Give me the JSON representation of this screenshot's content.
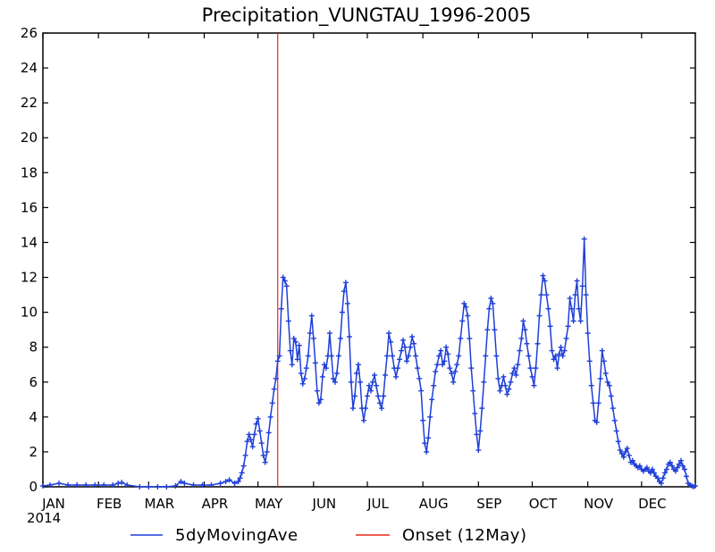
{
  "chart_data": {
    "type": "line",
    "title": "Precipitation_VUNGTAU_1996-2005",
    "xlabel": "",
    "ylabel": "",
    "ylim": [
      0,
      26
    ],
    "xlim_day": [
      1,
      365
    ],
    "year_label": "2014",
    "grid": false,
    "legend_position": "bottom",
    "y_ticks": [
      0,
      2,
      4,
      6,
      8,
      10,
      12,
      14,
      16,
      18,
      20,
      22,
      24,
      26
    ],
    "months": [
      {
        "label": "JAN",
        "day": 1
      },
      {
        "label": "FEB",
        "day": 32
      },
      {
        "label": "MAR",
        "day": 60
      },
      {
        "label": "APR",
        "day": 91
      },
      {
        "label": "MAY",
        "day": 121
      },
      {
        "label": "JUN",
        "day": 152
      },
      {
        "label": "JUL",
        "day": 182
      },
      {
        "label": "AUG",
        "day": 213
      },
      {
        "label": "SEP",
        "day": 244
      },
      {
        "label": "OCT",
        "day": 274
      },
      {
        "label": "NOV",
        "day": 305
      },
      {
        "label": "DEC",
        "day": 335
      }
    ],
    "onset": {
      "label": "Onset (12May)",
      "day": 132,
      "color": "#e8281e"
    },
    "series": [
      {
        "name": "5dyMovingAve",
        "color": "#1f3fd8",
        "points": [
          [
            1,
            0.05
          ],
          [
            5,
            0.1
          ],
          [
            10,
            0.2
          ],
          [
            15,
            0.1
          ],
          [
            20,
            0.1
          ],
          [
            25,
            0.1
          ],
          [
            30,
            0.1
          ],
          [
            35,
            0.1
          ],
          [
            40,
            0.1
          ],
          [
            43,
            0.2
          ],
          [
            45,
            0.25
          ],
          [
            48,
            0.1
          ],
          [
            55,
            0.0
          ],
          [
            60,
            0.0
          ],
          [
            65,
            0.0
          ],
          [
            70,
            0.0
          ],
          [
            75,
            0.05
          ],
          [
            78,
            0.3
          ],
          [
            80,
            0.2
          ],
          [
            85,
            0.1
          ],
          [
            90,
            0.1
          ],
          [
            95,
            0.1
          ],
          [
            100,
            0.2
          ],
          [
            103,
            0.3
          ],
          [
            105,
            0.4
          ],
          [
            108,
            0.2
          ],
          [
            110,
            0.3
          ],
          [
            111,
            0.5
          ],
          [
            112,
            0.8
          ],
          [
            113,
            1.2
          ],
          [
            114,
            1.8
          ],
          [
            115,
            2.6
          ],
          [
            116,
            3.0
          ],
          [
            117,
            2.7
          ],
          [
            118,
            2.3
          ],
          [
            119,
            3.0
          ],
          [
            120,
            3.6
          ],
          [
            121,
            3.9
          ],
          [
            122,
            3.2
          ],
          [
            123,
            2.5
          ],
          [
            124,
            1.8
          ],
          [
            125,
            1.4
          ],
          [
            126,
            2.0
          ],
          [
            127,
            3.1
          ],
          [
            128,
            4.0
          ],
          [
            129,
            4.8
          ],
          [
            130,
            5.6
          ],
          [
            131,
            6.2
          ],
          [
            132,
            7.2
          ],
          [
            133,
            7.5
          ],
          [
            134,
            10.2
          ],
          [
            135,
            12.0
          ],
          [
            136,
            11.8
          ],
          [
            137,
            11.5
          ],
          [
            138,
            9.5
          ],
          [
            139,
            7.8
          ],
          [
            140,
            7.0
          ],
          [
            141,
            8.5
          ],
          [
            142,
            8.3
          ],
          [
            143,
            7.3
          ],
          [
            144,
            8.1
          ],
          [
            145,
            6.5
          ],
          [
            146,
            5.9
          ],
          [
            147,
            6.2
          ],
          [
            148,
            6.8
          ],
          [
            149,
            7.5
          ],
          [
            150,
            8.8
          ],
          [
            151,
            9.8
          ],
          [
            152,
            8.5
          ],
          [
            153,
            7.1
          ],
          [
            154,
            5.5
          ],
          [
            155,
            4.8
          ],
          [
            156,
            5.0
          ],
          [
            157,
            6.3
          ],
          [
            158,
            7.0
          ],
          [
            159,
            6.8
          ],
          [
            160,
            7.5
          ],
          [
            161,
            8.8
          ],
          [
            162,
            7.5
          ],
          [
            163,
            6.2
          ],
          [
            164,
            6.0
          ],
          [
            165,
            6.5
          ],
          [
            166,
            7.5
          ],
          [
            167,
            8.5
          ],
          [
            168,
            10.0
          ],
          [
            169,
            11.2
          ],
          [
            170,
            11.7
          ],
          [
            171,
            10.5
          ],
          [
            172,
            8.6
          ],
          [
            173,
            6.0
          ],
          [
            174,
            4.5
          ],
          [
            175,
            5.2
          ],
          [
            176,
            6.5
          ],
          [
            177,
            7.0
          ],
          [
            178,
            6.0
          ],
          [
            179,
            4.5
          ],
          [
            180,
            3.8
          ],
          [
            181,
            4.5
          ],
          [
            182,
            5.2
          ],
          [
            183,
            5.8
          ],
          [
            184,
            5.5
          ],
          [
            185,
            6.0
          ],
          [
            186,
            6.4
          ],
          [
            187,
            5.8
          ],
          [
            188,
            5.2
          ],
          [
            189,
            4.8
          ],
          [
            190,
            4.5
          ],
          [
            191,
            5.2
          ],
          [
            192,
            6.4
          ],
          [
            193,
            7.5
          ],
          [
            194,
            8.8
          ],
          [
            195,
            8.3
          ],
          [
            196,
            7.5
          ],
          [
            197,
            6.8
          ],
          [
            198,
            6.3
          ],
          [
            199,
            6.8
          ],
          [
            200,
            7.3
          ],
          [
            201,
            7.8
          ],
          [
            202,
            8.4
          ],
          [
            203,
            8.0
          ],
          [
            204,
            7.2
          ],
          [
            205,
            7.5
          ],
          [
            206,
            8.0
          ],
          [
            207,
            8.6
          ],
          [
            208,
            8.2
          ],
          [
            209,
            7.5
          ],
          [
            210,
            6.8
          ],
          [
            211,
            6.2
          ],
          [
            212,
            5.5
          ],
          [
            213,
            3.8
          ],
          [
            214,
            2.5
          ],
          [
            215,
            2.0
          ],
          [
            216,
            2.8
          ],
          [
            217,
            4.0
          ],
          [
            218,
            5.0
          ],
          [
            219,
            5.8
          ],
          [
            220,
            6.6
          ],
          [
            221,
            7.0
          ],
          [
            222,
            7.5
          ],
          [
            223,
            7.8
          ],
          [
            224,
            7.0
          ],
          [
            225,
            7.2
          ],
          [
            226,
            8.0
          ],
          [
            227,
            7.6
          ],
          [
            228,
            6.8
          ],
          [
            229,
            6.5
          ],
          [
            230,
            6.0
          ],
          [
            231,
            6.6
          ],
          [
            232,
            7.0
          ],
          [
            233,
            7.5
          ],
          [
            234,
            8.5
          ],
          [
            235,
            9.5
          ],
          [
            236,
            10.5
          ],
          [
            237,
            10.3
          ],
          [
            238,
            9.8
          ],
          [
            239,
            8.5
          ],
          [
            240,
            6.8
          ],
          [
            241,
            5.5
          ],
          [
            242,
            4.2
          ],
          [
            243,
            3.0
          ],
          [
            244,
            2.1
          ],
          [
            245,
            3.2
          ],
          [
            246,
            4.5
          ],
          [
            247,
            6.0
          ],
          [
            248,
            7.5
          ],
          [
            249,
            9.0
          ],
          [
            250,
            10.2
          ],
          [
            251,
            10.8
          ],
          [
            252,
            10.5
          ],
          [
            253,
            9.0
          ],
          [
            254,
            7.5
          ],
          [
            255,
            6.2
          ],
          [
            256,
            5.5
          ],
          [
            257,
            5.8
          ],
          [
            258,
            6.3
          ],
          [
            259,
            5.8
          ],
          [
            260,
            5.3
          ],
          [
            261,
            5.6
          ],
          [
            262,
            6.0
          ],
          [
            263,
            6.5
          ],
          [
            264,
            6.8
          ],
          [
            265,
            6.4
          ],
          [
            266,
            7.0
          ],
          [
            267,
            7.8
          ],
          [
            268,
            8.5
          ],
          [
            269,
            9.5
          ],
          [
            270,
            9.0
          ],
          [
            271,
            8.2
          ],
          [
            272,
            7.5
          ],
          [
            273,
            6.8
          ],
          [
            274,
            6.3
          ],
          [
            275,
            5.8
          ],
          [
            276,
            6.8
          ],
          [
            277,
            8.2
          ],
          [
            278,
            9.8
          ],
          [
            279,
            11.0
          ],
          [
            280,
            12.1
          ],
          [
            281,
            11.8
          ],
          [
            282,
            11.0
          ],
          [
            283,
            10.2
          ],
          [
            284,
            9.2
          ],
          [
            285,
            7.8
          ],
          [
            286,
            7.3
          ],
          [
            287,
            7.5
          ],
          [
            288,
            6.8
          ],
          [
            289,
            7.6
          ],
          [
            290,
            8.0
          ],
          [
            291,
            7.5
          ],
          [
            292,
            7.8
          ],
          [
            293,
            8.5
          ],
          [
            294,
            9.2
          ],
          [
            295,
            10.8
          ],
          [
            296,
            10.2
          ],
          [
            297,
            9.5
          ],
          [
            298,
            11.0
          ],
          [
            299,
            11.8
          ],
          [
            300,
            10.2
          ],
          [
            301,
            9.5
          ],
          [
            302,
            11.5
          ],
          [
            303,
            14.2
          ],
          [
            304,
            11.0
          ],
          [
            305,
            8.8
          ],
          [
            306,
            7.2
          ],
          [
            307,
            5.8
          ],
          [
            308,
            4.8
          ],
          [
            309,
            3.8
          ],
          [
            310,
            3.7
          ],
          [
            311,
            4.8
          ],
          [
            312,
            6.2
          ],
          [
            313,
            7.8
          ],
          [
            314,
            7.2
          ],
          [
            315,
            6.5
          ],
          [
            316,
            6.0
          ],
          [
            317,
            5.8
          ],
          [
            318,
            5.2
          ],
          [
            319,
            4.5
          ],
          [
            320,
            3.8
          ],
          [
            321,
            3.2
          ],
          [
            322,
            2.6
          ],
          [
            323,
            2.1
          ],
          [
            324,
            1.9
          ],
          [
            325,
            1.7
          ],
          [
            326,
            2.0
          ],
          [
            327,
            2.2
          ],
          [
            328,
            1.8
          ],
          [
            329,
            1.4
          ],
          [
            330,
            1.5
          ],
          [
            331,
            1.3
          ],
          [
            332,
            1.2
          ],
          [
            333,
            1.1
          ],
          [
            334,
            1.2
          ],
          [
            335,
            1.0
          ],
          [
            336,
            0.9
          ],
          [
            337,
            1.0
          ],
          [
            338,
            1.1
          ],
          [
            339,
            0.9
          ],
          [
            340,
            0.8
          ],
          [
            341,
            1.0
          ],
          [
            342,
            0.8
          ],
          [
            343,
            0.6
          ],
          [
            344,
            0.5
          ],
          [
            345,
            0.3
          ],
          [
            346,
            0.2
          ],
          [
            347,
            0.5
          ],
          [
            348,
            0.8
          ],
          [
            349,
            1.0
          ],
          [
            350,
            1.3
          ],
          [
            351,
            1.4
          ],
          [
            352,
            1.2
          ],
          [
            353,
            1.0
          ],
          [
            354,
            0.9
          ],
          [
            355,
            1.1
          ],
          [
            356,
            1.3
          ],
          [
            357,
            1.5
          ],
          [
            358,
            1.2
          ],
          [
            359,
            1.0
          ],
          [
            360,
            0.6
          ],
          [
            361,
            0.2
          ],
          [
            362,
            0.1
          ],
          [
            363,
            0.05
          ],
          [
            364,
            0.0
          ],
          [
            365,
            0.05
          ]
        ]
      }
    ]
  },
  "legend": {
    "series_label": "5dyMovingAve",
    "onset_label": "Onset (12May)"
  }
}
